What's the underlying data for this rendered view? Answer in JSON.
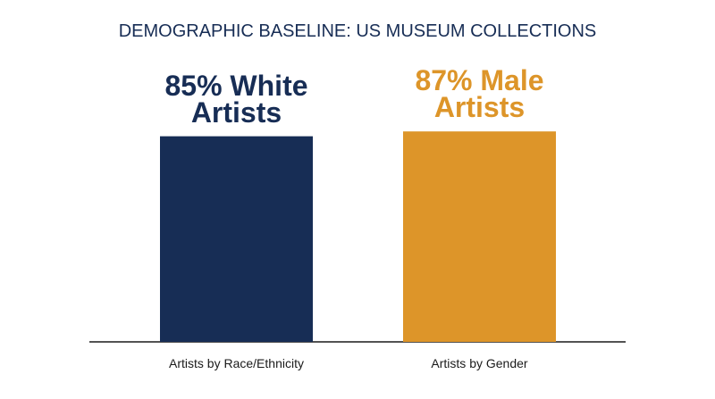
{
  "chart_data": {
    "type": "bar",
    "title": "DEMOGRAPHIC BASELINE: US MUSEUM COLLECTIONS",
    "categories": [
      "Artists by Race/Ethnicity",
      "Artists by Gender"
    ],
    "values": [
      85,
      87
    ],
    "value_labels": [
      "85% White Artists",
      "87% Male Artists"
    ],
    "colors": [
      "#172d55",
      "#dd9529"
    ]
  }
}
